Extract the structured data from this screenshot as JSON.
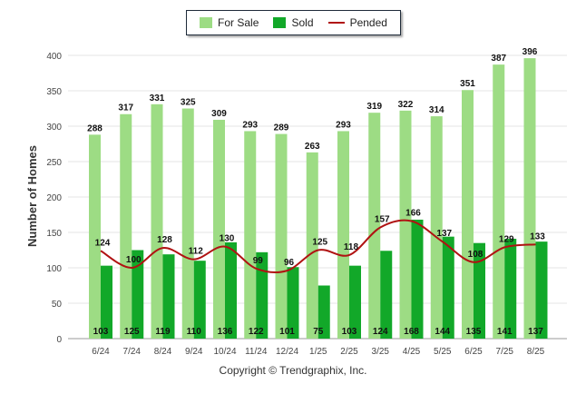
{
  "legend": {
    "for_sale": "For Sale",
    "sold": "Sold",
    "pended": "Pended"
  },
  "copyright": "Copyright © Trendgraphix, Inc.",
  "chart_data": {
    "type": "bar",
    "ylabel": "Number of Homes",
    "ylim": [
      0,
      400
    ],
    "y_ticks": [
      "0",
      "50",
      "100",
      "150",
      "200",
      "250",
      "300",
      "350",
      "400"
    ],
    "categories": [
      "6/24",
      "7/24",
      "8/24",
      "9/24",
      "10/24",
      "11/24",
      "12/24",
      "1/25",
      "2/25",
      "3/25",
      "4/25",
      "5/25",
      "6/25",
      "7/25",
      "8/25"
    ],
    "series": [
      {
        "name": "For Sale",
        "kind": "bar",
        "color": "#9ddc84",
        "values": [
          288,
          317,
          331,
          325,
          309,
          293,
          289,
          263,
          293,
          319,
          322,
          314,
          351,
          387,
          396
        ]
      },
      {
        "name": "Sold",
        "kind": "bar",
        "color": "#12a829",
        "values": [
          103,
          125,
          119,
          110,
          136,
          122,
          101,
          75,
          103,
          124,
          168,
          144,
          135,
          141,
          137
        ]
      },
      {
        "name": "Pended",
        "kind": "line",
        "color": "#b01212",
        "values": [
          124,
          100,
          128,
          112,
          130,
          99,
          96,
          125,
          118,
          157,
          166,
          137,
          108,
          129,
          133
        ]
      }
    ],
    "grid": true,
    "legend_position": "top-center"
  }
}
